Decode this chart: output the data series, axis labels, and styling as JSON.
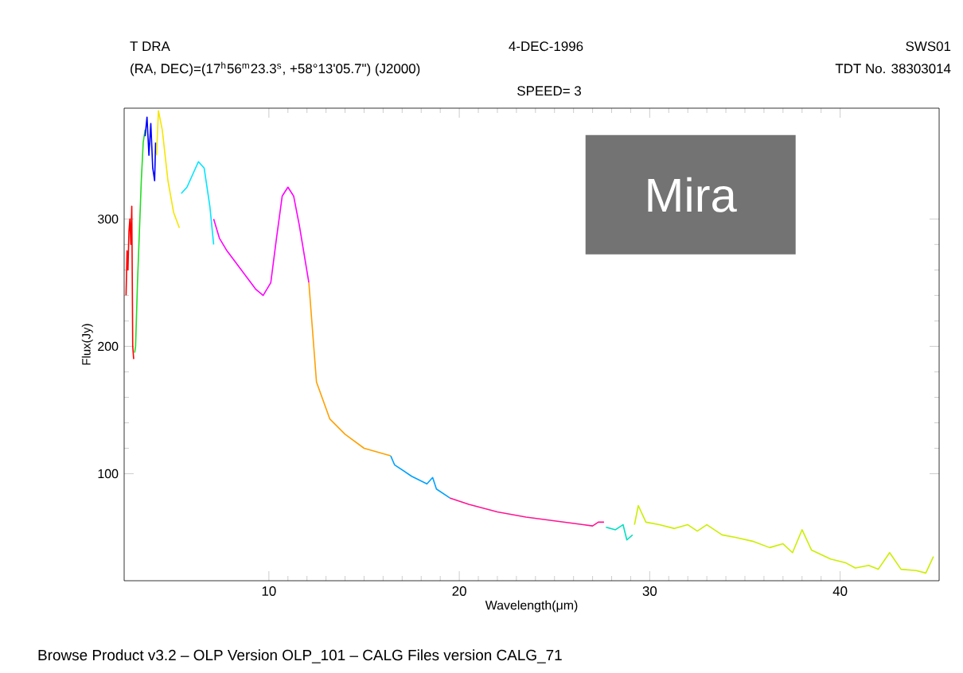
{
  "chart_data": {
    "type": "line",
    "title": "T DRA",
    "subtitle": "(RA, DEC)=(17$^{h}$56$^{m}$23.3$^{s}$, +58°13'05.7\") (J2000)",
    "xlabel": "Wavelength(μm)",
    "ylabel": "Flux(Jy)",
    "annotations": [
      "4-DEC-1996",
      "SWS01",
      "TDT No. 38303014",
      "SPEED= 3",
      "Mira",
      "Browse Product v3.2 – OLP Version OLP_101  – CALG Files version CALG_71"
    ],
    "xlim": [
      2.4,
      45.2
    ],
    "ylim": [
      16,
      387
    ],
    "xticks": [
      10,
      20,
      30,
      40
    ],
    "yticks": [
      100,
      200,
      300
    ],
    "grid": false,
    "series": [
      {
        "color": "#ff0000",
        "x": [
          2.5,
          2.55,
          2.6,
          2.65,
          2.7,
          2.75,
          2.8,
          2.85,
          2.9
        ],
        "values": [
          240,
          275,
          260,
          290,
          300,
          280,
          310,
          200,
          190
        ]
      },
      {
        "color": "#22dd22",
        "x": [
          2.95,
          3.0,
          3.1,
          3.2,
          3.3,
          3.4,
          3.5
        ],
        "values": [
          195,
          200,
          250,
          290,
          330,
          360,
          370
        ]
      },
      {
        "color": "#0000ff",
        "x": [
          3.5,
          3.6,
          3.7,
          3.8,
          3.9,
          4.0,
          4.05
        ],
        "values": [
          365,
          380,
          350,
          375,
          340,
          330,
          360
        ]
      },
      {
        "color": "#f5e600",
        "x": [
          4.1,
          4.2,
          4.4,
          4.7,
          5.0,
          5.3
        ],
        "values": [
          350,
          385,
          370,
          330,
          305,
          293
        ]
      },
      {
        "color": "#00e5ff",
        "x": [
          5.4,
          5.7,
          6.0,
          6.3,
          6.6,
          6.9,
          7.1
        ],
        "values": [
          320,
          325,
          335,
          345,
          340,
          310,
          280
        ]
      },
      {
        "color": "#ff00ff",
        "x": [
          7.1,
          7.4,
          7.8,
          8.3,
          8.8,
          9.3,
          9.7,
          10.1,
          10.4,
          10.7,
          11.0,
          11.3,
          11.6,
          12.1
        ],
        "values": [
          300,
          285,
          275,
          265,
          255,
          245,
          240,
          250,
          285,
          318,
          325,
          318,
          295,
          250
        ]
      },
      {
        "color": "#ffa000",
        "x": [
          12.1,
          12.5,
          13.2,
          14.0,
          15.0,
          16.4
        ],
        "values": [
          250,
          172,
          143,
          131,
          120,
          114
        ]
      },
      {
        "color": "#00a0ff",
        "x": [
          16.4,
          16.6,
          17.5,
          18.3,
          18.6,
          18.8,
          19.5
        ],
        "values": [
          114,
          107,
          98,
          92,
          97,
          88,
          81
        ]
      },
      {
        "color": "#ff1493",
        "x": [
          19.5,
          20.5,
          22.0,
          23.5,
          25.0,
          26.5,
          27.0,
          27.3,
          27.6
        ],
        "values": [
          81,
          76,
          70,
          66,
          63,
          60,
          59,
          62,
          62
        ]
      },
      {
        "color": "#00e0c0",
        "x": [
          27.7,
          28.2,
          28.6,
          28.8,
          29.1
        ],
        "values": [
          58,
          56,
          60,
          48,
          52
        ]
      },
      {
        "color": "#ccee00",
        "x": [
          29.2,
          29.4,
          29.8,
          30.5,
          31.3,
          32.0,
          32.5,
          33.0,
          33.8,
          34.5,
          35.4,
          36.3,
          37.0,
          37.5,
          38.0,
          38.5,
          39.5,
          40.3,
          40.8,
          41.5,
          42.0,
          42.6,
          43.2,
          44.0,
          44.5,
          44.9
        ],
        "values": [
          60,
          75,
          62,
          60,
          57,
          60,
          55,
          60,
          52,
          50,
          47,
          42,
          45,
          38,
          56,
          40,
          33,
          30,
          26,
          28,
          25,
          38,
          25,
          24,
          22,
          35
        ]
      }
    ]
  }
}
